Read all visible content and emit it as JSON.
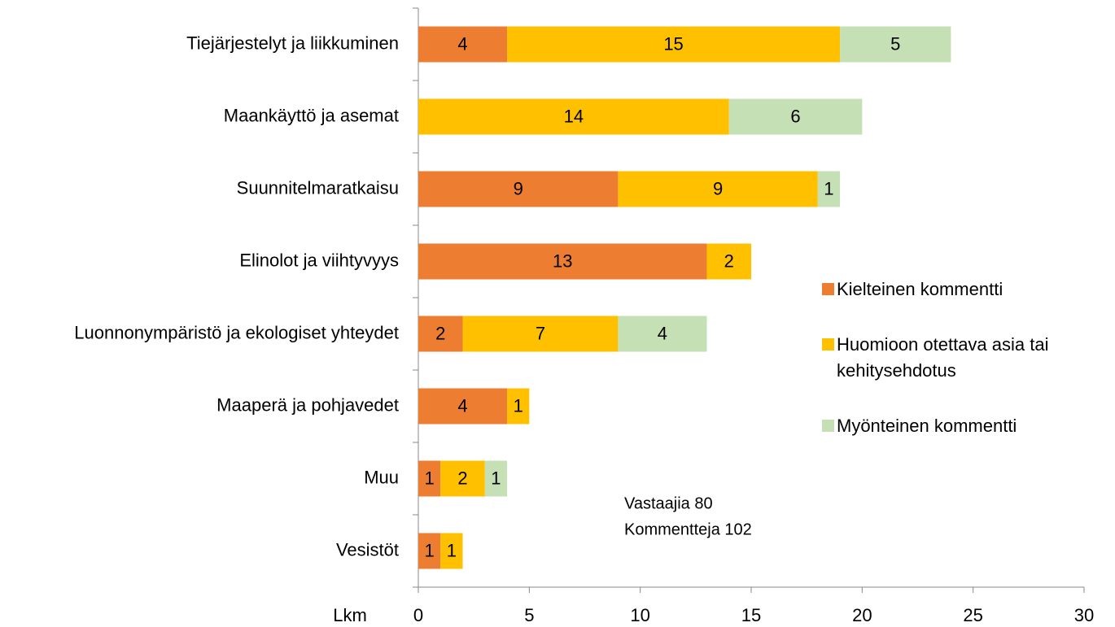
{
  "chart_data": {
    "type": "stacked_barh",
    "categories": [
      "Tiejärjestelyt ja liikkuminen",
      "Maankäyttö ja asemat",
      "Suunnitelmaratkaisu",
      "Elinolot ja viihtyvyys",
      "Luonnonympäristö ja ekologiset yhteydet",
      "Maaperä ja pohjavedet",
      "Muu",
      "Vesistöt"
    ],
    "series": [
      {
        "name": "Kielteinen kommentti",
        "color": "#ed7d31",
        "values": [
          4,
          null,
          9,
          13,
          2,
          4,
          1,
          1
        ]
      },
      {
        "name": "Huomioon otettava asia tai kehitysehdotus",
        "color": "#ffc000",
        "values": [
          15,
          14,
          9,
          2,
          7,
          1,
          2,
          1
        ]
      },
      {
        "name": "Myönteinen kommentti",
        "color": "#c5e0b4",
        "values": [
          5,
          6,
          1,
          null,
          4,
          null,
          1,
          null
        ]
      }
    ],
    "xlabel": "Lkm",
    "xlim": [
      0,
      30
    ],
    "xticks": [
      0,
      5,
      10,
      15,
      20,
      25,
      30
    ],
    "annotations": [
      "Vastaajia 80",
      "Kommentteja 102"
    ],
    "legend": "right"
  }
}
